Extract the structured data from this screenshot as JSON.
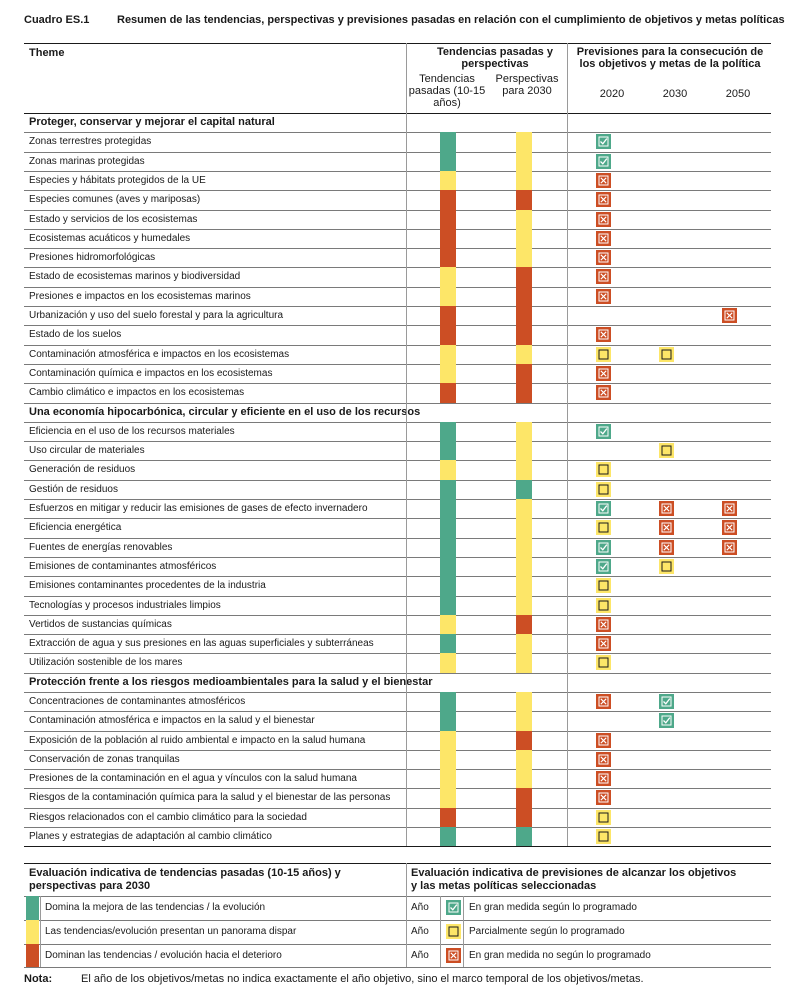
{
  "caption": {
    "label": "Cuadro ES.1",
    "title": "Resumen de las tendencias, perspectivas y previsiones pasadas en relación con el cumplimiento de objetivos y metas políticas"
  },
  "header": {
    "theme": "Theme",
    "trends_title": "Tendencias pasadas y perspectivas",
    "trends_past": "Tendencias pasadas (10-15 años)",
    "trends_outlook": "Perspectivas para 2030",
    "prospects_title": "Previsiones para la consecución de los objetivos y metas de la política",
    "years": [
      "2020",
      "2030",
      "2050"
    ]
  },
  "colors": {
    "green": "#4ea88a",
    "yellow": "#fde668",
    "red": "#cc4e24"
  },
  "sections": [
    {
      "title": "Proteger, conservar y mejorar el capital natural",
      "rows": [
        {
          "label": "Zonas terrestres protegidas",
          "past": "green",
          "outlook": "yellow",
          "y2020": "check",
          "y2030": "",
          "y2050": ""
        },
        {
          "label": "Zonas marinas protegidas",
          "past": "green",
          "outlook": "yellow",
          "y2020": "check",
          "y2030": "",
          "y2050": ""
        },
        {
          "label": "Especies y hábitats protegidos de la UE",
          "past": "yellow",
          "outlook": "yellow",
          "y2020": "cross",
          "y2030": "",
          "y2050": ""
        },
        {
          "label": "Especies comunes (aves y mariposas)",
          "past": "red",
          "outlook": "red",
          "y2020": "cross",
          "y2030": "",
          "y2050": ""
        },
        {
          "label": "Estado y servicios de los ecosistemas",
          "past": "red",
          "outlook": "yellow",
          "y2020": "cross",
          "y2030": "",
          "y2050": ""
        },
        {
          "label": "Ecosistemas acuáticos y humedales",
          "past": "red",
          "outlook": "yellow",
          "y2020": "cross",
          "y2030": "",
          "y2050": ""
        },
        {
          "label": "Presiones hidromorfológicas",
          "past": "red",
          "outlook": "yellow",
          "y2020": "cross",
          "y2030": "",
          "y2050": ""
        },
        {
          "label": "Estado de ecosistemas marinos y biodiversidad",
          "past": "yellow",
          "outlook": "red",
          "y2020": "cross",
          "y2030": "",
          "y2050": ""
        },
        {
          "label": "Presiones e impactos en los ecosistemas marinos",
          "past": "yellow",
          "outlook": "red",
          "y2020": "cross",
          "y2030": "",
          "y2050": ""
        },
        {
          "label": "Urbanización y uso del suelo forestal y para la agricultura",
          "past": "red",
          "outlook": "red",
          "y2020": "",
          "y2030": "",
          "y2050": "cross"
        },
        {
          "label": "Estado de los suelos",
          "past": "red",
          "outlook": "red",
          "y2020": "cross",
          "y2030": "",
          "y2050": ""
        },
        {
          "label": "Contaminación atmosférica e impactos en los ecosistemas",
          "past": "yellow",
          "outlook": "yellow",
          "y2020": "partial",
          "y2030": "partial",
          "y2050": ""
        },
        {
          "label": "Contaminación química e impactos en los ecosistemas",
          "past": "yellow",
          "outlook": "red",
          "y2020": "cross",
          "y2030": "",
          "y2050": ""
        },
        {
          "label": "Cambio climático e impactos en los ecosistemas",
          "past": "red",
          "outlook": "red",
          "y2020": "cross",
          "y2030": "",
          "y2050": ""
        }
      ]
    },
    {
      "title": "Una economía hipocarbónica, circular y eficiente en el uso de los recursos",
      "rows": [
        {
          "label": "Eficiencia en el uso de los recursos materiales",
          "past": "green",
          "outlook": "yellow",
          "y2020": "check",
          "y2030": "",
          "y2050": ""
        },
        {
          "label": "Uso circular de materiales",
          "past": "green",
          "outlook": "yellow",
          "y2020": "",
          "y2030": "partial",
          "y2050": ""
        },
        {
          "label": "Generación de residuos",
          "past": "yellow",
          "outlook": "yellow",
          "y2020": "partial",
          "y2030": "",
          "y2050": ""
        },
        {
          "label": "Gestión de residuos",
          "past": "green",
          "outlook": "green",
          "y2020": "partial",
          "y2030": "",
          "y2050": ""
        },
        {
          "label": "Esfuerzos en mitigar y reducir las emisiones de gases de efecto invernadero",
          "past": "green",
          "outlook": "yellow",
          "y2020": "check",
          "y2030": "cross",
          "y2050": "cross"
        },
        {
          "label": "Eficiencia energética",
          "past": "green",
          "outlook": "yellow",
          "y2020": "partial",
          "y2030": "cross",
          "y2050": "cross"
        },
        {
          "label": "Fuentes de energías renovables",
          "past": "green",
          "outlook": "yellow",
          "y2020": "check",
          "y2030": "cross",
          "y2050": "cross"
        },
        {
          "label": "Emisiones de contaminantes atmosféricos",
          "past": "green",
          "outlook": "yellow",
          "y2020": "check",
          "y2030": "partial",
          "y2050": ""
        },
        {
          "label": "Emisiones contaminantes procedentes de la industria",
          "past": "green",
          "outlook": "yellow",
          "y2020": "partial",
          "y2030": "",
          "y2050": ""
        },
        {
          "label": "Tecnologías y procesos industriales limpios",
          "past": "green",
          "outlook": "yellow",
          "y2020": "partial",
          "y2030": "",
          "y2050": ""
        },
        {
          "label": "Vertidos de sustancias químicas",
          "past": "yellow",
          "outlook": "red",
          "y2020": "cross",
          "y2030": "",
          "y2050": ""
        },
        {
          "label": "Extracción de agua y sus presiones en las aguas superficiales y subterráneas",
          "past": "green",
          "outlook": "yellow",
          "y2020": "cross",
          "y2030": "",
          "y2050": ""
        },
        {
          "label": "Utilización sostenible de los mares",
          "past": "yellow",
          "outlook": "yellow",
          "y2020": "partial",
          "y2030": "",
          "y2050": ""
        }
      ]
    },
    {
      "title": "Protección frente a los riesgos medioambientales para la salud y el bienestar",
      "rows": [
        {
          "label": "Concentraciones de contaminantes atmosféricos",
          "past": "green",
          "outlook": "yellow",
          "y2020": "cross",
          "y2030": "check",
          "y2050": ""
        },
        {
          "label": "Contaminación atmosférica e impactos en la salud y el bienestar",
          "past": "green",
          "outlook": "yellow",
          "y2020": "",
          "y2030": "check",
          "y2050": ""
        },
        {
          "label": "Exposición de la población al ruido ambiental e impacto en la salud humana",
          "past": "yellow",
          "outlook": "red",
          "y2020": "cross",
          "y2030": "",
          "y2050": ""
        },
        {
          "label": "Conservación de zonas tranquilas",
          "past": "yellow",
          "outlook": "yellow",
          "y2020": "cross",
          "y2030": "",
          "y2050": ""
        },
        {
          "label": "Presiones de la contaminación en el agua y vínculos con la salud humana",
          "past": "yellow",
          "outlook": "yellow",
          "y2020": "cross",
          "y2030": "",
          "y2050": ""
        },
        {
          "label": "Riesgos de la contaminación química para la salud y el bienestar de las personas",
          "past": "yellow",
          "outlook": "red",
          "y2020": "cross",
          "y2030": "",
          "y2050": ""
        },
        {
          "label": "Riesgos relacionados con el cambio climático para la sociedad",
          "past": "red",
          "outlook": "red",
          "y2020": "partial",
          "y2030": "",
          "y2050": ""
        },
        {
          "label": "Planes y estrategias de adaptación al cambio climático",
          "past": "green",
          "outlook": "green",
          "y2020": "partial",
          "y2030": "",
          "y2050": ""
        }
      ]
    }
  ],
  "legend": {
    "left_title": "Evaluación indicativa de tendencias pasadas (10-15 años) y perspectivas para 2030",
    "left_items": [
      {
        "color": "green",
        "text": "Domina la mejora de las tendencias /  la evolución"
      },
      {
        "color": "yellow",
        "text": "Las tendencias/evolución presentan un panorama dispar"
      },
      {
        "color": "red",
        "text": "Dominan las tendencias / evolución hacia el deterioro"
      }
    ],
    "right_title": "Evaluación indicativa de previsiones de alcanzar los objetivos y las metas políticas seleccionadas",
    "right_items": [
      {
        "year_label": "Año",
        "icon": "check",
        "text": "En gran medida según lo programado"
      },
      {
        "year_label": "Año",
        "icon": "partial",
        "text": "Parcialmente según lo programado"
      },
      {
        "year_label": "Año",
        "icon": "cross",
        "text": "En gran medida no según lo programado"
      }
    ]
  },
  "note": {
    "label": "Nota:",
    "text": "El año de los objetivos/metas no indica exactamente el año objetivo, sino el marco temporal de los objetivos/metas."
  }
}
